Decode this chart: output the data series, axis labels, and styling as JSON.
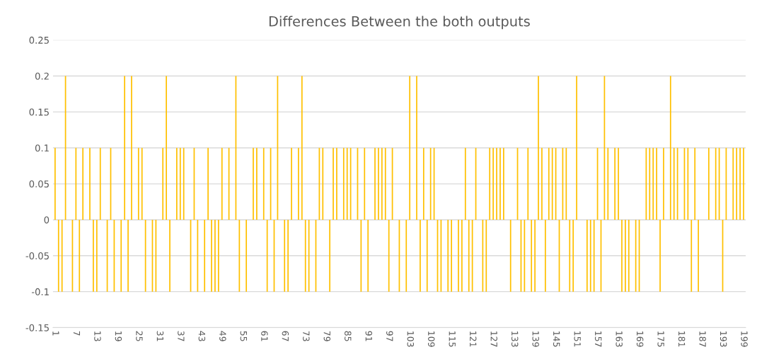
{
  "chart_data": {
    "type": "bar",
    "title": "Differences Between the both outputs",
    "categories": [
      "1",
      null,
      null,
      null,
      null,
      null,
      "7",
      null,
      null,
      null,
      null,
      null,
      "13",
      null,
      null,
      null,
      null,
      null,
      "19",
      null,
      null,
      null,
      null,
      null,
      "25",
      null,
      null,
      null,
      null,
      null,
      "31",
      null,
      null,
      null,
      null,
      null,
      "37",
      null,
      null,
      null,
      null,
      null,
      "43",
      null,
      null,
      null,
      null,
      null,
      "49",
      null,
      null,
      null,
      null,
      null,
      "55",
      null,
      null,
      null,
      null,
      null,
      "61",
      null,
      null,
      null,
      null,
      null,
      "67",
      null,
      null,
      null,
      null,
      null,
      "73",
      null,
      null,
      null,
      null,
      null,
      "79",
      null,
      null,
      null,
      null,
      null,
      "85",
      null,
      null,
      null,
      null,
      null,
      "91",
      null,
      null,
      null,
      null,
      null,
      "97",
      null,
      null,
      null,
      null,
      null,
      "103",
      null,
      null,
      null,
      null,
      null,
      "109",
      null,
      null,
      null,
      null,
      null,
      "115",
      null,
      null,
      null,
      null,
      null,
      "121",
      null,
      null,
      null,
      null,
      null,
      "127",
      null,
      null,
      null,
      null,
      null,
      "133",
      null,
      null,
      null,
      null,
      null,
      "139",
      null,
      null,
      null,
      null,
      null,
      "145",
      null,
      null,
      null,
      null,
      null,
      "151",
      null,
      null,
      null,
      null,
      null,
      "157",
      null,
      null,
      null,
      null,
      null,
      "163",
      null,
      null,
      null,
      null,
      null,
      "169",
      null,
      null,
      null,
      null,
      null,
      "175",
      null,
      null,
      null,
      null,
      null,
      "181",
      null,
      null,
      null,
      null,
      null,
      "187",
      null,
      null,
      null,
      null,
      null,
      "193",
      null,
      null,
      null,
      null,
      null,
      "199"
    ],
    "values": [
      0.1,
      -0.1,
      -0.1,
      0.2,
      0,
      -0.1,
      0.1,
      -0.1,
      0.1,
      0,
      0.1,
      -0.1,
      -0.1,
      0.1,
      0,
      -0.1,
      0.1,
      -0.1,
      0,
      -0.1,
      0.2,
      -0.1,
      0.2,
      0,
      0.1,
      0.1,
      -0.1,
      0,
      -0.1,
      -0.1,
      0,
      0.1,
      0.2,
      -0.1,
      0,
      0.1,
      0.1,
      0.1,
      0,
      -0.1,
      0.1,
      -0.1,
      0,
      -0.1,
      0.1,
      -0.1,
      -0.1,
      -0.1,
      0.1,
      0,
      0.1,
      0,
      0.2,
      -0.1,
      0,
      -0.1,
      0,
      0.1,
      0.1,
      0,
      0.1,
      -0.1,
      0.1,
      -0.1,
      0.2,
      0,
      -0.1,
      -0.1,
      0.1,
      0,
      0.1,
      0.2,
      -0.1,
      -0.1,
      0,
      -0.1,
      0.1,
      0.1,
      0,
      -0.1,
      0.1,
      0.1,
      0,
      0.1,
      0.1,
      0.1,
      0,
      0.1,
      -0.1,
      0.1,
      -0.1,
      0,
      0.1,
      0.1,
      0.1,
      0.1,
      -0.1,
      0.1,
      0,
      -0.1,
      0,
      -0.1,
      0.2,
      0,
      0.2,
      -0.1,
      0.1,
      -0.1,
      0.1,
      0.1,
      -0.1,
      -0.1,
      0,
      -0.1,
      -0.1,
      0,
      -0.1,
      -0.1,
      0.1,
      -0.1,
      -0.1,
      0.1,
      0,
      -0.1,
      -0.1,
      0.1,
      0.1,
      0.1,
      0.1,
      0.1,
      0,
      -0.1,
      0,
      0.1,
      -0.1,
      -0.1,
      0.1,
      -0.1,
      -0.1,
      0.2,
      0.1,
      -0.1,
      0.1,
      0.1,
      0.1,
      -0.1,
      0.1,
      0.1,
      -0.1,
      -0.1,
      0.2,
      0,
      0,
      -0.1,
      -0.1,
      -0.1,
      0.1,
      -0.1,
      0.2,
      0.1,
      0,
      0.1,
      0.1,
      -0.1,
      -0.1,
      -0.1,
      0,
      -0.1,
      -0.1,
      0,
      0.1,
      0.1,
      0.1,
      0.1,
      -0.1,
      0.1,
      0,
      0.2,
      0.1,
      0.1,
      0,
      0.1,
      0.1,
      -0.1,
      0.1,
      -0.1,
      0,
      0,
      0.1,
      0,
      0.1,
      0.1,
      -0.1,
      0.1,
      0,
      0.1,
      0.1,
      0.1,
      0.1
    ],
    "color": "#ffc000",
    "ylim": [
      -0.15,
      0.25
    ],
    "yticks": [
      -0.15,
      -0.1,
      -0.05,
      0,
      0.05,
      0.1,
      0.15,
      0.2,
      0.25
    ],
    "grid": "y"
  }
}
